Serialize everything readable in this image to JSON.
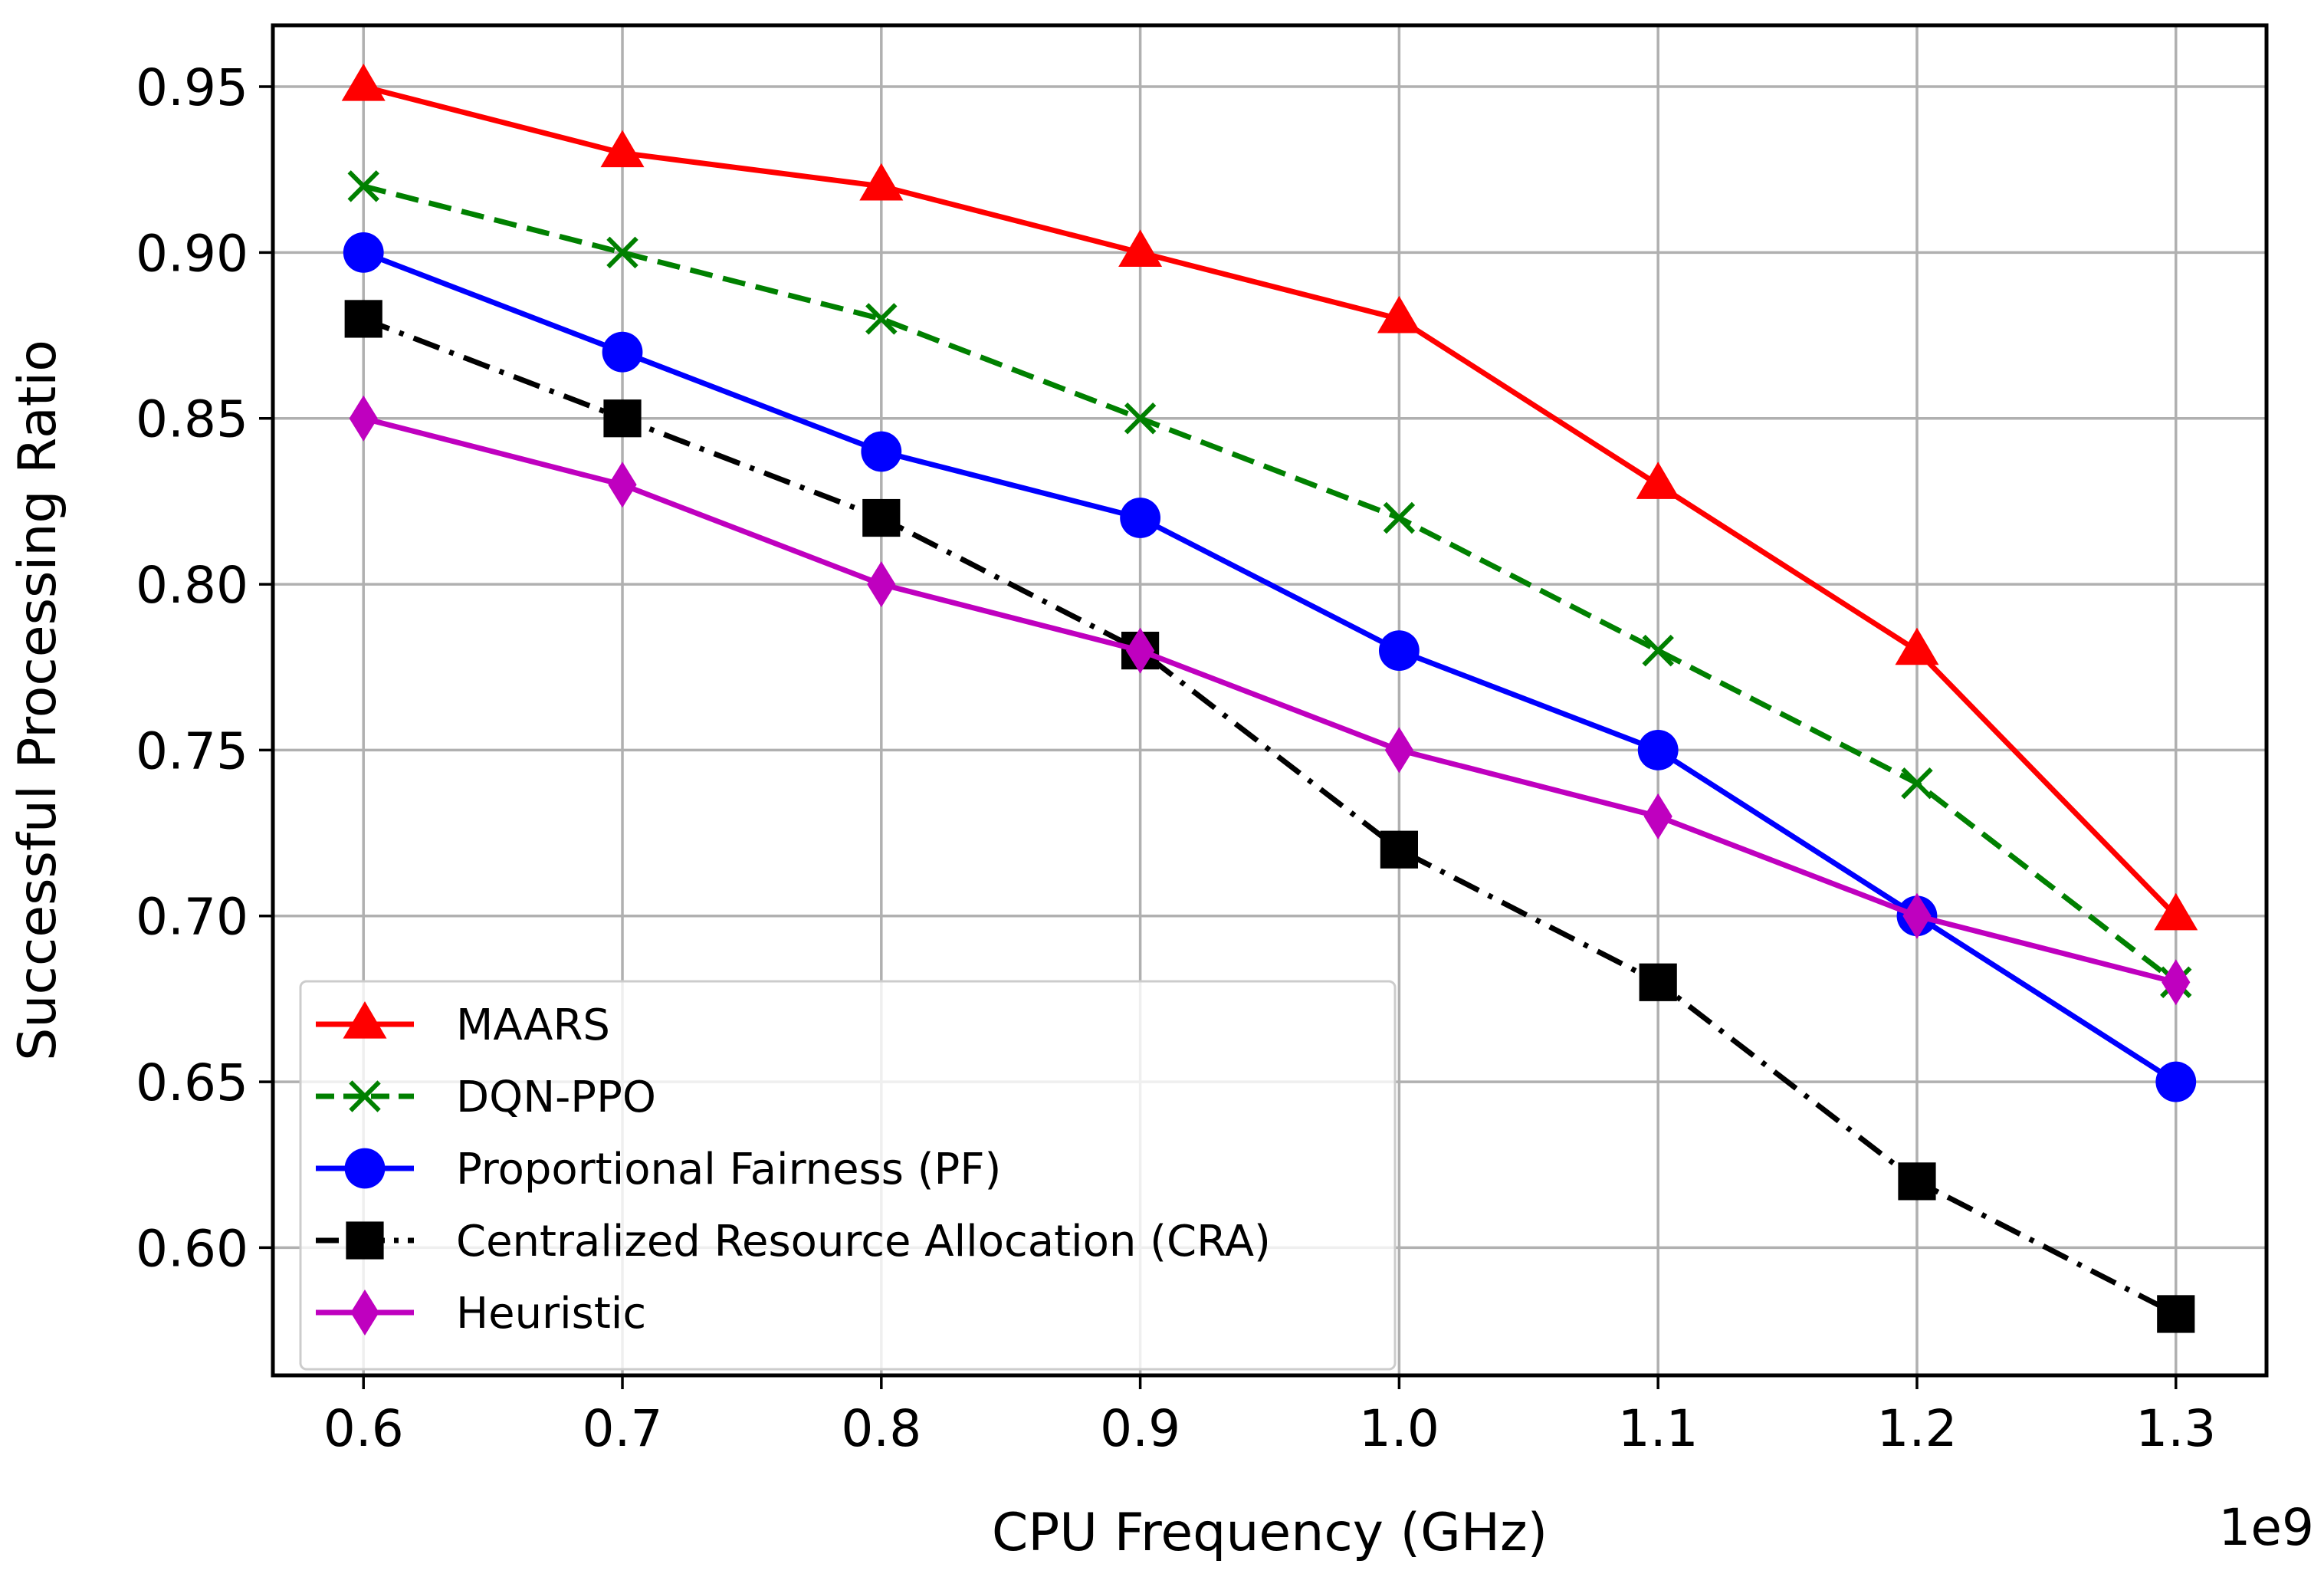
{
  "chart_data": {
    "type": "line",
    "title": "",
    "xlabel": "CPU Frequency (GHz)",
    "ylabel": "Successful Processing Ratio",
    "x_offset_label": "1e9",
    "x": [
      0.6,
      0.7,
      0.8,
      0.9,
      1.0,
      1.1,
      1.2,
      1.3
    ],
    "x_tick_labels": [
      "0.6",
      "0.7",
      "0.8",
      "0.9",
      "1.0",
      "1.1",
      "1.2",
      "1.3"
    ],
    "xlim": [
      0.565,
      1.335
    ],
    "y_ticks": [
      0.6,
      0.65,
      0.7,
      0.75,
      0.8,
      0.85,
      0.9,
      0.95
    ],
    "y_tick_labels": [
      "0.60",
      "0.65",
      "0.70",
      "0.75",
      "0.80",
      "0.85",
      "0.90",
      "0.95"
    ],
    "ylim": [
      0.5615,
      0.9685
    ],
    "grid": true,
    "legend_position": "lower-left",
    "series": [
      {
        "name": "MAARS",
        "color": "#ff0000",
        "marker": "triangle",
        "line_style": "solid",
        "values": [
          0.95,
          0.93,
          0.92,
          0.9,
          0.88,
          0.83,
          0.78,
          0.7
        ]
      },
      {
        "name": "DQN-PPO",
        "color": "#008000",
        "marker": "x",
        "line_style": "dashed",
        "values": [
          0.92,
          0.9,
          0.88,
          0.85,
          0.82,
          0.78,
          0.74,
          0.68
        ]
      },
      {
        "name": "Proportional Fairness (PF)",
        "color": "#0000ff",
        "marker": "circle",
        "line_style": "solid",
        "values": [
          0.9,
          0.87,
          0.84,
          0.82,
          0.78,
          0.75,
          0.7,
          0.65
        ]
      },
      {
        "name": "Centralized Resource Allocation (CRA)",
        "color": "#000000",
        "marker": "square",
        "line_style": "dashdot",
        "values": [
          0.88,
          0.85,
          0.82,
          0.78,
          0.72,
          0.68,
          0.62,
          0.58
        ]
      },
      {
        "name": "Heuristic",
        "color": "#bf00bf",
        "marker": "diamond",
        "line_style": "solid",
        "values": [
          0.85,
          0.83,
          0.8,
          0.78,
          0.75,
          0.73,
          0.7,
          0.68
        ]
      }
    ]
  }
}
